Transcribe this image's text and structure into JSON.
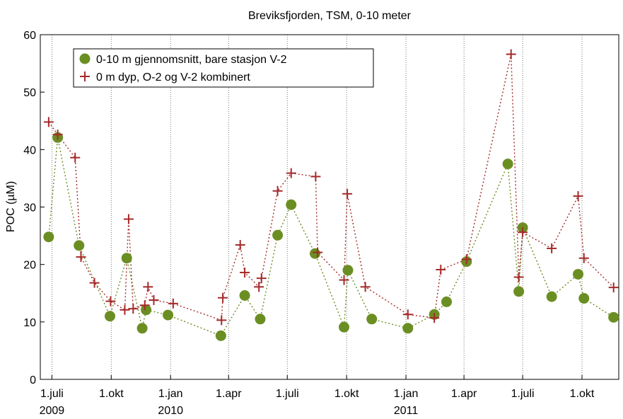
{
  "chart_data": {
    "type": "line",
    "title": "Breviksfjorden, TSM, 0-10 meter",
    "xlabel": "",
    "ylabel": "POC (µM)",
    "ylim": [
      0,
      60
    ],
    "yticks": [
      0,
      10,
      20,
      30,
      40,
      50,
      60
    ],
    "xlim": [
      "2009-06-13",
      "2011-11-27"
    ],
    "xticks": [
      {
        "date": "2009-07-01",
        "label": "1.juli",
        "sublabel": "2009"
      },
      {
        "date": "2009-10-01",
        "label": "1.okt",
        "sublabel": ""
      },
      {
        "date": "2010-01-01",
        "label": "1.jan",
        "sublabel": "2010"
      },
      {
        "date": "2010-04-01",
        "label": "1.apr",
        "sublabel": ""
      },
      {
        "date": "2010-07-01",
        "label": "1.juli",
        "sublabel": ""
      },
      {
        "date": "2010-10-01",
        "label": "1.okt",
        "sublabel": ""
      },
      {
        "date": "2011-01-01",
        "label": "1.jan",
        "sublabel": "2011"
      },
      {
        "date": "2011-04-01",
        "label": "1.apr",
        "sublabel": ""
      },
      {
        "date": "2011-07-01",
        "label": "1.juli",
        "sublabel": ""
      },
      {
        "date": "2011-10-01",
        "label": "1.okt",
        "sublabel": ""
      }
    ],
    "grid": "vertical dotted lines at x ticks",
    "legend_position": "top-left",
    "series": [
      {
        "name": "0-10 m gjennomsnitt, bare stasjon V-2",
        "marker": "circle",
        "line": "dotted",
        "color": "#6b8e23",
        "points": [
          {
            "x": "2009-06-26",
            "y": 24.8
          },
          {
            "x": "2009-07-10",
            "y": 42.1
          },
          {
            "x": "2009-08-12",
            "y": 23.3
          },
          {
            "x": "2009-09-29",
            "y": 11.0
          },
          {
            "x": "2009-10-25",
            "y": 21.1
          },
          {
            "x": "2009-11-18",
            "y": 8.9
          },
          {
            "x": "2009-11-24",
            "y": 12.1
          },
          {
            "x": "2009-12-28",
            "y": 11.2
          },
          {
            "x": "2010-03-20",
            "y": 7.6
          },
          {
            "x": "2010-04-26",
            "y": 14.6
          },
          {
            "x": "2010-05-20",
            "y": 10.5
          },
          {
            "x": "2010-06-16",
            "y": 25.1
          },
          {
            "x": "2010-07-07",
            "y": 30.4
          },
          {
            "x": "2010-08-13",
            "y": 21.9
          },
          {
            "x": "2010-09-27",
            "y": 9.1
          },
          {
            "x": "2010-10-03",
            "y": 19.0
          },
          {
            "x": "2010-11-09",
            "y": 10.5
          },
          {
            "x": "2011-01-04",
            "y": 8.9
          },
          {
            "x": "2011-02-14",
            "y": 11.3
          },
          {
            "x": "2011-03-05",
            "y": 13.5
          },
          {
            "x": "2011-04-05",
            "y": 20.5
          },
          {
            "x": "2011-06-08",
            "y": 37.5
          },
          {
            "x": "2011-06-25",
            "y": 15.3
          },
          {
            "x": "2011-07-01",
            "y": 26.4
          },
          {
            "x": "2011-08-15",
            "y": 14.4
          },
          {
            "x": "2011-09-25",
            "y": 18.3
          },
          {
            "x": "2011-10-04",
            "y": 14.1
          },
          {
            "x": "2011-11-19",
            "y": 10.8
          }
        ]
      },
      {
        "name": "0 m dyp, O-2 og V-2 kombinert",
        "marker": "plus",
        "line": "dotted",
        "color": "#a52a2a",
        "points": [
          {
            "x": "2009-06-26",
            "y": 44.8
          },
          {
            "x": "2009-07-10",
            "y": 42.6
          },
          {
            "x": "2009-08-06",
            "y": 38.6
          },
          {
            "x": "2009-08-15",
            "y": 21.3
          },
          {
            "x": "2009-09-05",
            "y": 16.8
          },
          {
            "x": "2009-09-30",
            "y": 13.6
          },
          {
            "x": "2009-10-22",
            "y": 12.1
          },
          {
            "x": "2009-10-28",
            "y": 27.9
          },
          {
            "x": "2009-11-04",
            "y": 12.3
          },
          {
            "x": "2009-11-22",
            "y": 12.9
          },
          {
            "x": "2009-11-27",
            "y": 16.1
          },
          {
            "x": "2009-12-06",
            "y": 13.8
          },
          {
            "x": "2010-01-05",
            "y": 13.2
          },
          {
            "x": "2010-03-21",
            "y": 10.3
          },
          {
            "x": "2010-03-23",
            "y": 14.2
          },
          {
            "x": "2010-04-19",
            "y": 23.4
          },
          {
            "x": "2010-04-26",
            "y": 18.6
          },
          {
            "x": "2010-05-18",
            "y": 16.1
          },
          {
            "x": "2010-05-22",
            "y": 17.6
          },
          {
            "x": "2010-06-16",
            "y": 32.8
          },
          {
            "x": "2010-07-07",
            "y": 35.9
          },
          {
            "x": "2010-08-14",
            "y": 35.3
          },
          {
            "x": "2010-08-17",
            "y": 22.1
          },
          {
            "x": "2010-09-27",
            "y": 17.3
          },
          {
            "x": "2010-10-02",
            "y": 32.3
          },
          {
            "x": "2010-10-30",
            "y": 16.1
          },
          {
            "x": "2011-01-04",
            "y": 11.3
          },
          {
            "x": "2011-02-14",
            "y": 10.7
          },
          {
            "x": "2011-02-24",
            "y": 19.1
          },
          {
            "x": "2011-04-05",
            "y": 20.9
          },
          {
            "x": "2011-06-13",
            "y": 56.6
          },
          {
            "x": "2011-06-25",
            "y": 17.8
          },
          {
            "x": "2011-07-01",
            "y": 25.6
          },
          {
            "x": "2011-08-15",
            "y": 22.8
          },
          {
            "x": "2011-09-25",
            "y": 31.9
          },
          {
            "x": "2011-10-04",
            "y": 21.1
          },
          {
            "x": "2011-11-19",
            "y": 16.0
          }
        ]
      }
    ]
  }
}
